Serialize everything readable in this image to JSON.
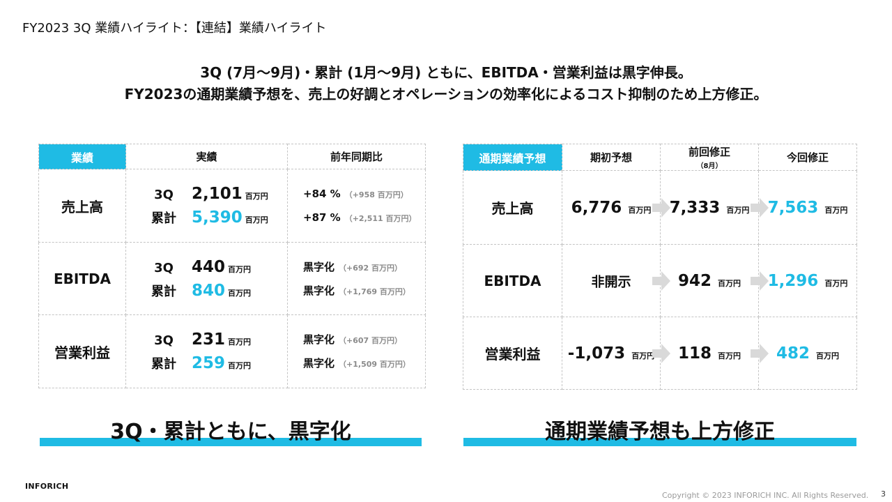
{
  "page": {
    "title": "FY2023 3Q 業績ハイライト：【連結】業績ハイライト",
    "headline_line1": "3Q (7月〜9月)・累計 (1月〜9月) ともに、EBITDA・営業利益は黒字伸長。",
    "headline_line2": "FY2023の通期業績予想を、売上の好調とオペレーションの効率化によるコスト抑制のため上方修正。"
  },
  "colors": {
    "accent": "#1fbbe4",
    "muted": "#8a8a8a",
    "arrow": "#d9d9d9"
  },
  "left_table": {
    "headers": {
      "category": "業績",
      "actual": "実績",
      "yoy": "前年同期比"
    },
    "rows": [
      {
        "label": "売上高",
        "q3": {
          "period": "3Q",
          "value": "2,101",
          "unit": "百万円",
          "yoy": "+84 %",
          "diff": "（+958 百万円）"
        },
        "cum": {
          "period": "累計",
          "value": "5,390",
          "unit": "百万円",
          "yoy": "+87 %",
          "diff": "（+2,511 百万円）"
        }
      },
      {
        "label": "EBITDA",
        "q3": {
          "period": "3Q",
          "value": "440",
          "unit": "百万円",
          "yoy": "黒字化",
          "diff": "（+692 百万円）"
        },
        "cum": {
          "period": "累計",
          "value": "840",
          "unit": "百万円",
          "yoy": "黒字化",
          "diff": "（+1,769 百万円）"
        }
      },
      {
        "label": "営業利益",
        "q3": {
          "period": "3Q",
          "value": "231",
          "unit": "百万円",
          "yoy": "黒字化",
          "diff": "（+607 百万円）"
        },
        "cum": {
          "period": "累計",
          "value": "259",
          "unit": "百万円",
          "yoy": "黒字化",
          "diff": "（+1,509 百万円）"
        }
      }
    ]
  },
  "right_table": {
    "headers": {
      "category": "通期業績予想",
      "initial": "期初予想",
      "previous": "前回修正",
      "previous_note": "（8月）",
      "current": "今回修正"
    },
    "rows": [
      {
        "label": "売上高",
        "initial": "6,776",
        "initial_unit": "百万円",
        "previous": "7,333",
        "previous_unit": "百万円",
        "current": "7,563",
        "current_unit": "百万円"
      },
      {
        "label": "EBITDA",
        "initial": "非開示",
        "initial_unit": "",
        "previous": "942",
        "previous_unit": "百万円",
        "current": "1,296",
        "current_unit": "百万円"
      },
      {
        "label": "営業利益",
        "initial": "-1,073",
        "initial_unit": "百万円",
        "previous": "118",
        "previous_unit": "百万円",
        "current": "482",
        "current_unit": "百万円"
      }
    ]
  },
  "summary": {
    "left": "3Q・累計ともに、黒字化",
    "right": "通期業績予想も上方修正"
  },
  "footer": {
    "logo": "INFORICH",
    "copyright": "Copyright © 2023 INFORICH INC. All Rights Reserved.",
    "page_number": "3"
  }
}
